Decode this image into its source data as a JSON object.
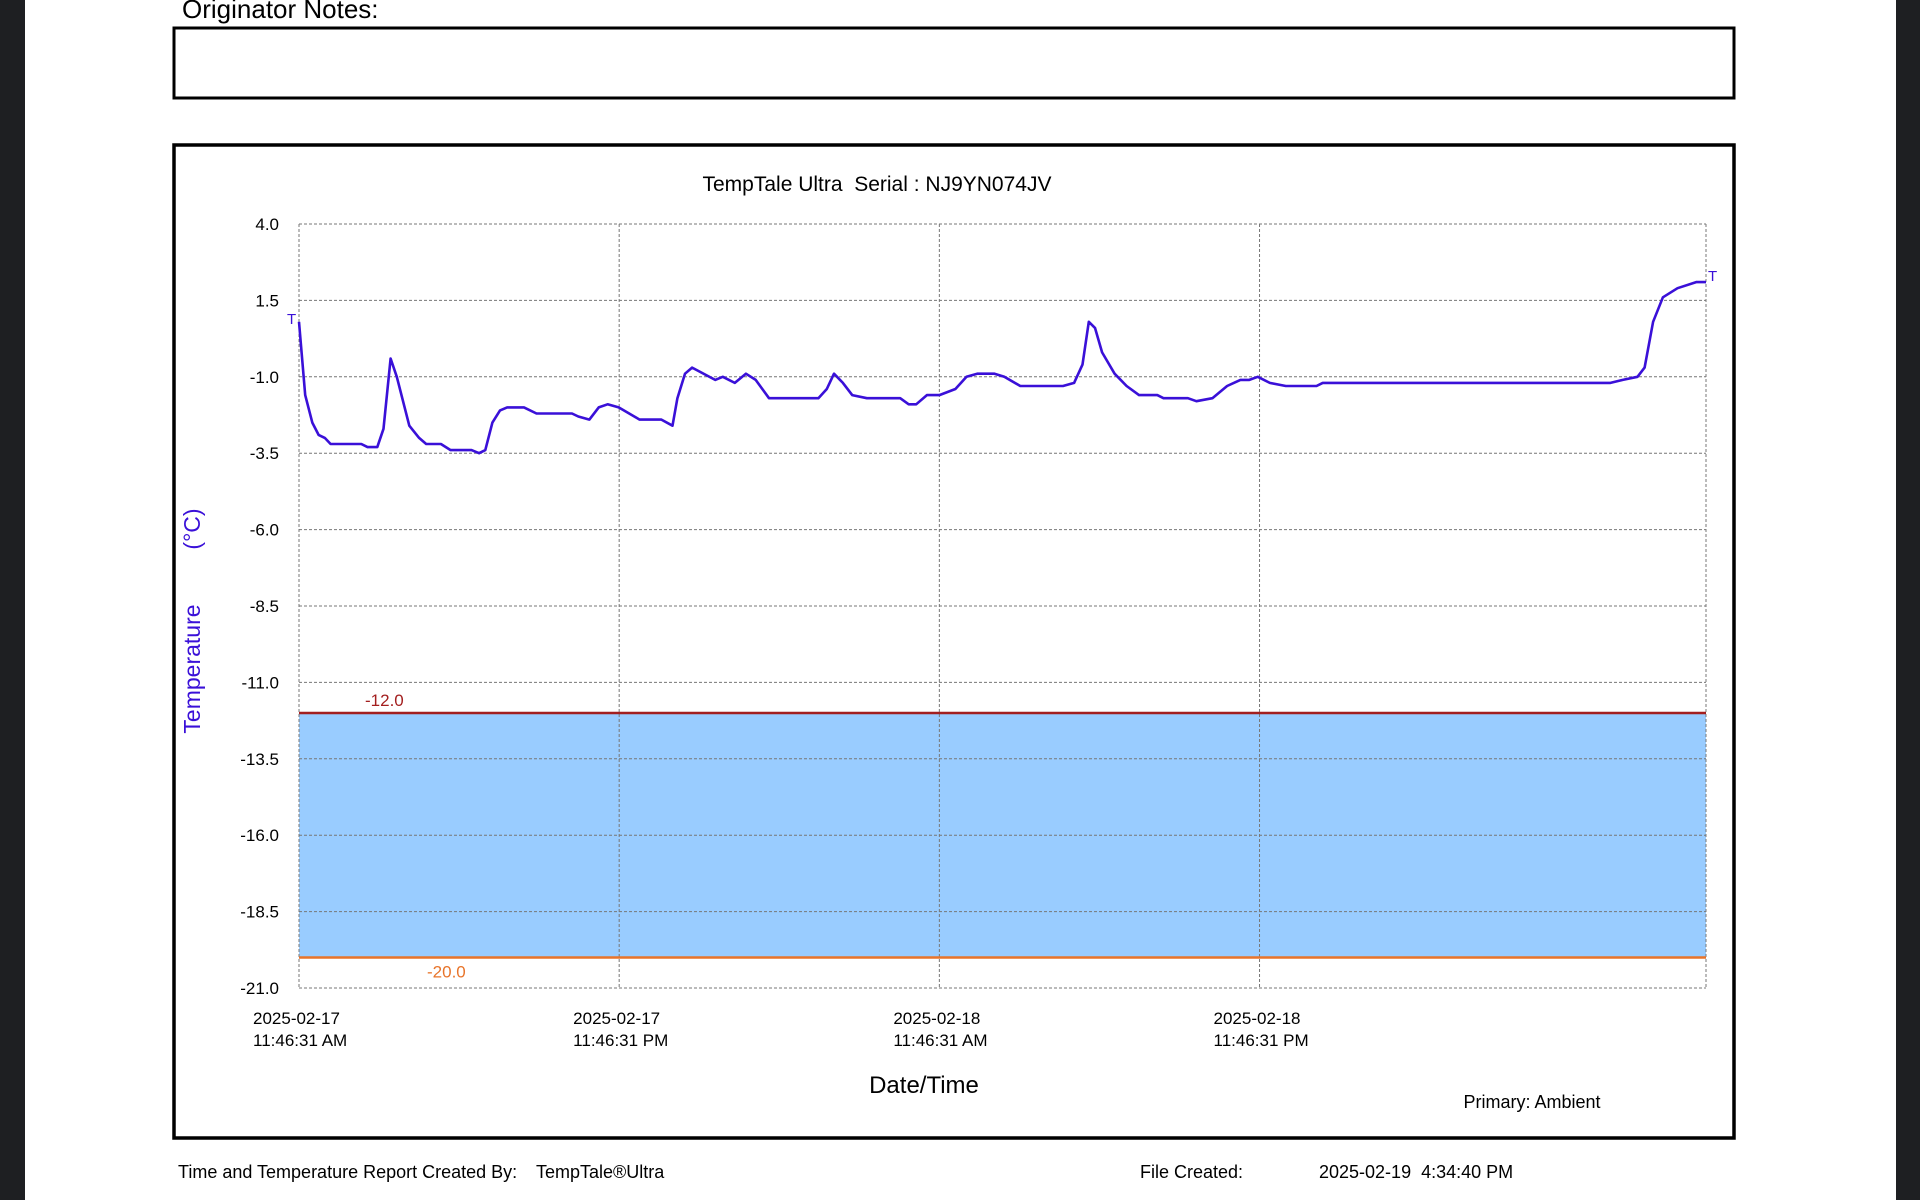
{
  "notes": {
    "label": "Originator Notes:"
  },
  "chart_data": {
    "type": "line",
    "title": "TempTale Ultra  Serial : NJ9YN074JV",
    "y_label": "Temperature",
    "y_unit": "(°C)",
    "x_label": "Date/Time",
    "point_marker": "T",
    "grid": true,
    "ylim": [
      -21,
      4
    ],
    "yticks": [
      {
        "value": 4,
        "label": "4.0"
      },
      1.5,
      {
        "value": -1,
        "label": "-1.0"
      },
      -3.5,
      {
        "value": -6,
        "label": "-6.0"
      },
      -8.5,
      {
        "value": -11,
        "label": "-11.0"
      },
      -13.5,
      {
        "value": -16,
        "label": "-16.0"
      },
      -18.5,
      {
        "value": -21,
        "label": "-21.0"
      }
    ],
    "xlim": [
      "2025-02-17T11:46:31",
      "2025-02-19T16:30:31"
    ],
    "xticks": [
      {
        "value": "2025-02-17T11:46:31",
        "label": [
          "2025-02-17",
          "11:46:31 AM"
        ]
      },
      {
        "value": "2025-02-17T23:46:31",
        "label": [
          "2025-02-17",
          "11:46:31 PM"
        ]
      },
      {
        "value": "2025-02-18T11:46:31",
        "label": [
          "2025-02-18",
          "11:46:31 AM"
        ]
      },
      {
        "value": "2025-02-18T23:46:31",
        "label": [
          "2025-02-18",
          "11:46:31 PM"
        ]
      }
    ],
    "thresholds": [
      {
        "value": -12,
        "label": "-12.0",
        "color": "#a31f1f"
      },
      {
        "value": -20,
        "label": "-20.0",
        "color": "#e8742a"
      }
    ],
    "band_color": "#99ccff",
    "x": [
      "2025-02-17T11:46:31",
      "2025-02-17T12:00:31",
      "2025-02-17T12:16:31",
      "2025-02-17T12:30:31",
      "2025-02-17T12:44:31",
      "2025-02-17T12:57:31",
      "2025-02-17T14:06:31",
      "2025-02-17T14:20:31",
      "2025-02-17T14:42:31",
      "2025-02-17T14:56:31",
      "2025-02-17T15:12:31",
      "2025-02-17T15:26:31",
      "2025-02-17T15:54:31",
      "2025-02-17T16:16:31",
      "2025-02-17T16:32:31",
      "2025-02-17T17:05:31",
      "2025-02-17T17:27:31",
      "2025-02-17T18:14:31",
      "2025-02-17T18:31:31",
      "2025-02-17T18:45:31",
      "2025-02-17T19:01:31",
      "2025-02-17T19:18:31",
      "2025-02-17T19:34:31",
      "2025-02-17T20:12:31",
      "2025-02-17T20:40:31",
      "2025-02-17T22:00:31",
      "2025-02-17T22:14:31",
      "2025-02-17T22:39:31",
      "2025-02-17T23:00:31",
      "2025-02-17T23:20:31",
      "2025-02-17T23:45:31",
      "2025-02-18T00:32:31",
      "2025-02-18T01:21:31",
      "2025-02-18T01:46:31",
      "2025-02-18T01:57:31",
      "2025-02-18T02:14:31",
      "2025-02-18T02:30:31",
      "2025-02-18T03:22:31",
      "2025-02-18T03:39:31",
      "2025-02-18T04:06:31",
      "2025-02-18T04:31:31",
      "2025-02-18T04:53:31",
      "2025-02-18T05:23:31",
      "2025-02-18T07:14:31",
      "2025-02-18T07:33:31",
      "2025-02-18T07:49:31",
      "2025-02-18T08:09:31",
      "2025-02-18T08:30:31",
      "2025-02-18T09:03:31",
      "2025-02-18T10:18:31",
      "2025-02-18T10:37:31",
      "2025-02-18T10:54:31",
      "2025-02-18T11:18:31",
      "2025-02-18T11:46:31",
      "2025-02-18T12:22:31",
      "2025-02-18T12:47:31",
      "2025-02-18T13:11:31",
      "2025-02-18T13:50:31",
      "2025-02-18T14:12:31",
      "2025-02-18T14:48:31",
      "2025-02-18T16:24:31",
      "2025-02-18T16:49:31",
      "2025-02-18T17:08:31",
      "2025-02-18T17:22:31",
      "2025-02-18T17:36:31",
      "2025-02-18T17:52:31",
      "2025-02-18T18:20:31",
      "2025-02-18T18:47:31",
      "2025-02-18T19:15:31",
      "2025-02-18T19:56:31",
      "2025-02-18T20:10:31",
      "2025-02-18T21:05:31",
      "2025-02-18T21:24:31",
      "2025-02-18T22:00:31",
      "2025-02-18T22:33:31",
      "2025-02-18T23:03:31",
      "2025-02-18T23:23:31",
      "2025-02-18T23:42:31",
      "2025-02-19T00:09:31",
      "2025-02-19T00:45:31",
      "2025-02-19T01:54:31",
      "2025-02-19T02:08:31",
      "2025-02-19T12:55:31",
      "2025-02-19T13:23:31",
      "2025-02-19T13:56:31",
      "2025-02-19T14:12:31",
      "2025-02-19T14:31:31",
      "2025-02-19T14:53:31",
      "2025-02-19T15:26:31",
      "2025-02-19T16:08:31",
      "2025-02-19T16:30:31"
    ],
    "series": [
      {
        "name": "Primary: Ambient",
        "color": "#3a10d8",
        "values": [
          0.8,
          -1.6,
          -2.5,
          -2.9,
          -3.0,
          -3.2,
          -3.2,
          -3.3,
          -3.3,
          -2.7,
          -0.4,
          -1.0,
          -2.6,
          -3.0,
          -3.2,
          -3.2,
          -3.4,
          -3.4,
          -3.5,
          -3.4,
          -2.5,
          -2.1,
          -2.0,
          -2.0,
          -2.2,
          -2.2,
          -2.3,
          -2.4,
          -2.0,
          -1.9,
          -2.0,
          -2.4,
          -2.4,
          -2.6,
          -1.7,
          -0.9,
          -0.7,
          -1.1,
          -1.0,
          -1.2,
          -0.9,
          -1.1,
          -1.7,
          -1.7,
          -1.4,
          -0.9,
          -1.2,
          -1.6,
          -1.7,
          -1.7,
          -1.9,
          -1.9,
          -1.6,
          -1.6,
          -1.4,
          -1.0,
          -0.9,
          -0.9,
          -1.0,
          -1.3,
          -1.3,
          -1.2,
          -0.6,
          0.8,
          0.6,
          -0.2,
          -0.9,
          -1.3,
          -1.6,
          -1.6,
          -1.7,
          -1.7,
          -1.8,
          -1.7,
          -1.3,
          -1.1,
          -1.1,
          -1.0,
          -1.2,
          -1.3,
          -1.3,
          -1.2,
          -1.2,
          -1.1,
          -1.0,
          -0.7,
          0.8,
          1.6,
          1.9,
          2.1,
          2.1
        ]
      }
    ]
  },
  "footer": {
    "created_by_label": "Time and Temperature Report Created By:",
    "product": "TempTale®Ultra",
    "file_created_label": "File Created:",
    "file_created": "2025-02-19  4:34:40 PM"
  }
}
